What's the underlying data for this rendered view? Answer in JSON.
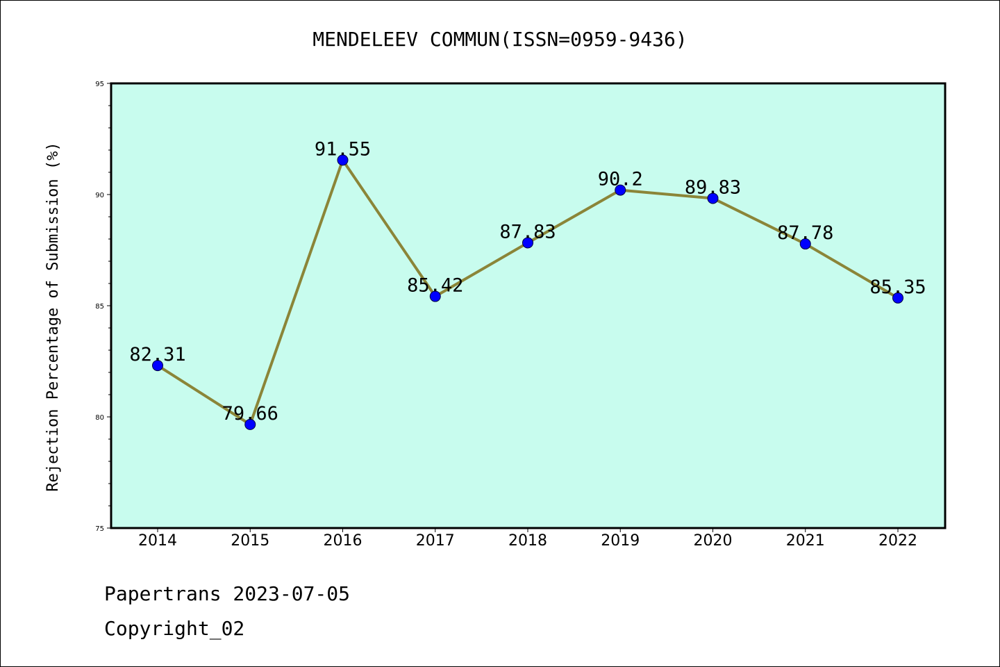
{
  "chart_data": {
    "type": "line",
    "title": "MENDELEEV COMMUN(ISSN=0959-9436)",
    "xlabel": "",
    "ylabel": "Rejection Percentage of Submission (%)",
    "categories": [
      "2014",
      "2015",
      "2016",
      "2017",
      "2018",
      "2019",
      "2020",
      "2021",
      "2022"
    ],
    "values": [
      82.31,
      79.66,
      91.55,
      85.42,
      87.83,
      90.2,
      89.83,
      87.78,
      85.35
    ],
    "data_labels": [
      "82.31",
      "79.66",
      "91.55",
      "85.42",
      "87.83",
      "90.2",
      "89.83",
      "87.78",
      "85.35"
    ],
    "ylim": [
      75,
      95
    ],
    "yticks": [
      "75",
      "80",
      "85",
      "90",
      "95"
    ],
    "grid": false,
    "colors": {
      "plot_background": "#c8fcee",
      "line": "#8b8538",
      "marker": "#0000ff"
    }
  },
  "footer": {
    "line1": "Papertrans 2023-07-05",
    "line2": "Copyright_02"
  }
}
